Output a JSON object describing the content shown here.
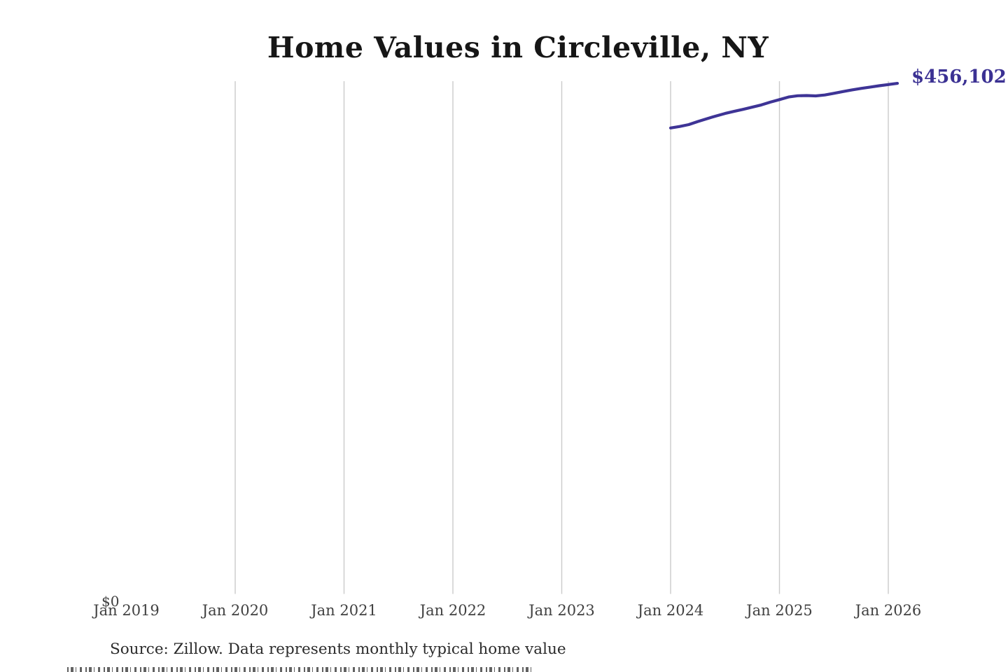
{
  "header": {
    "title": "Home Values in Circleville, NY"
  },
  "chart": {
    "end_label": "$456,102",
    "zero_label": "$0",
    "x_tick_labels": [
      "Jan 2019",
      "Jan 2020",
      "Jan 2021",
      "Jan 2022",
      "Jan 2023",
      "Jan 2024",
      "Jan 2025",
      "Jan 2026"
    ],
    "line_color": "#3e3496",
    "end_label_color": "#3b3193",
    "gridline_color": "#cbcbcb",
    "tick_label_color": "#414141"
  },
  "footer": {
    "source": "Source: Zillow. Data represents monthly typical home value"
  },
  "chart_data": {
    "type": "line",
    "title": "Home Values in Circleville, NY",
    "x": [
      "Jan 2024",
      "Feb 2024",
      "Mar 2024",
      "Apr 2024",
      "May 2024",
      "Jun 2024",
      "Jul 2024",
      "Aug 2024",
      "Sep 2024",
      "Oct 2024",
      "Nov 2024",
      "Dec 2024",
      "Jan 2025",
      "Feb 2025",
      "Mar 2025",
      "Apr 2025",
      "May 2025",
      "Jun 2025",
      "Jul 2025",
      "Aug 2025",
      "Sep 2025",
      "Oct 2025",
      "Nov 2025",
      "Dec 2025",
      "Jan 2026",
      "Feb 2026"
    ],
    "values": [
      416600,
      417900,
      419600,
      422300,
      424800,
      427200,
      429400,
      431300,
      433100,
      435000,
      437000,
      439500,
      441700,
      444000,
      445100,
      445300,
      445000,
      445800,
      447300,
      448800,
      450300,
      451600,
      452800,
      454000,
      455000,
      456102
    ],
    "xlabel": "",
    "ylabel": "",
    "ylim": [
      0,
      458000
    ],
    "x_axis_range": [
      "Jan 2019",
      "Feb 2026"
    ],
    "x_axis_tick_labels": [
      "Jan 2019",
      "Jan 2020",
      "Jan 2021",
      "Jan 2022",
      "Jan 2023",
      "Jan 2024",
      "Jan 2025",
      "Jan 2026"
    ],
    "y_axis_tick_labels": [
      "$0"
    ],
    "grid": "vertical-yearly",
    "legend": "none",
    "end_label": "$456,102",
    "source": "Source: Zillow. Data represents monthly typical home value",
    "line_color": "#3e3496"
  }
}
